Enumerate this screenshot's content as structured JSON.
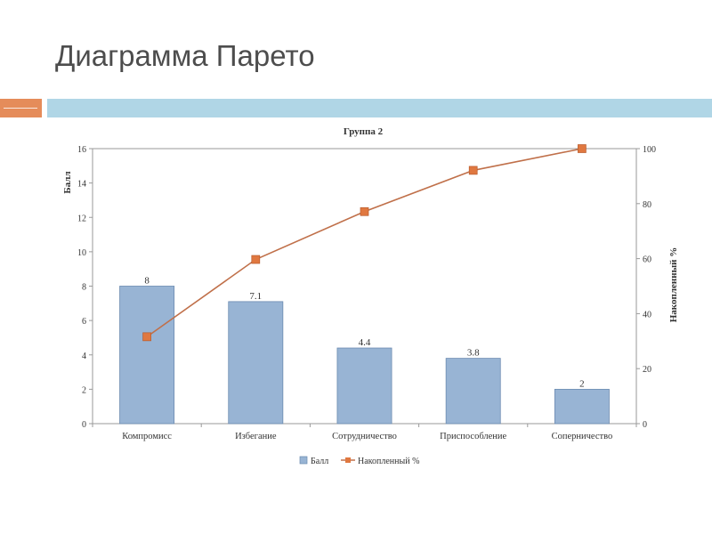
{
  "slide": {
    "title": "Диаграмма Парето"
  },
  "colors": {
    "accent_orange": "#e58c5a",
    "accent_blue": "#b0d6e6",
    "bar_fill": "#98b4d4",
    "bar_stroke": "#6b8ab0",
    "line_color": "#c0704a",
    "marker_color": "#e07840"
  },
  "chart_data": {
    "type": "bar",
    "title": "Группа 2",
    "categories": [
      "Компромисс",
      "Избегание",
      "Сотрудничество",
      "Приспособление",
      "Соперничество"
    ],
    "series": [
      {
        "name": "Балл",
        "type": "bar",
        "axis": "left",
        "values": [
          8,
          7.1,
          4.4,
          3.8,
          2
        ],
        "data_labels": [
          "8",
          "7.1",
          "4.4",
          "3.8",
          "2"
        ]
      },
      {
        "name": "Накопленный %",
        "type": "line",
        "axis": "right",
        "values": [
          31.6,
          59.7,
          77.1,
          92.1,
          100
        ]
      }
    ],
    "ylabel": "Балл",
    "ylabel_right": "Накопленный %",
    "ylim": [
      0,
      16
    ],
    "yticks": [
      0,
      2,
      4,
      6,
      8,
      10,
      12,
      14,
      16
    ],
    "ylim_right": [
      0,
      100
    ],
    "yticks_right": [
      0,
      20,
      40,
      60,
      80,
      100
    ],
    "grid": false,
    "legend_position": "bottom"
  }
}
